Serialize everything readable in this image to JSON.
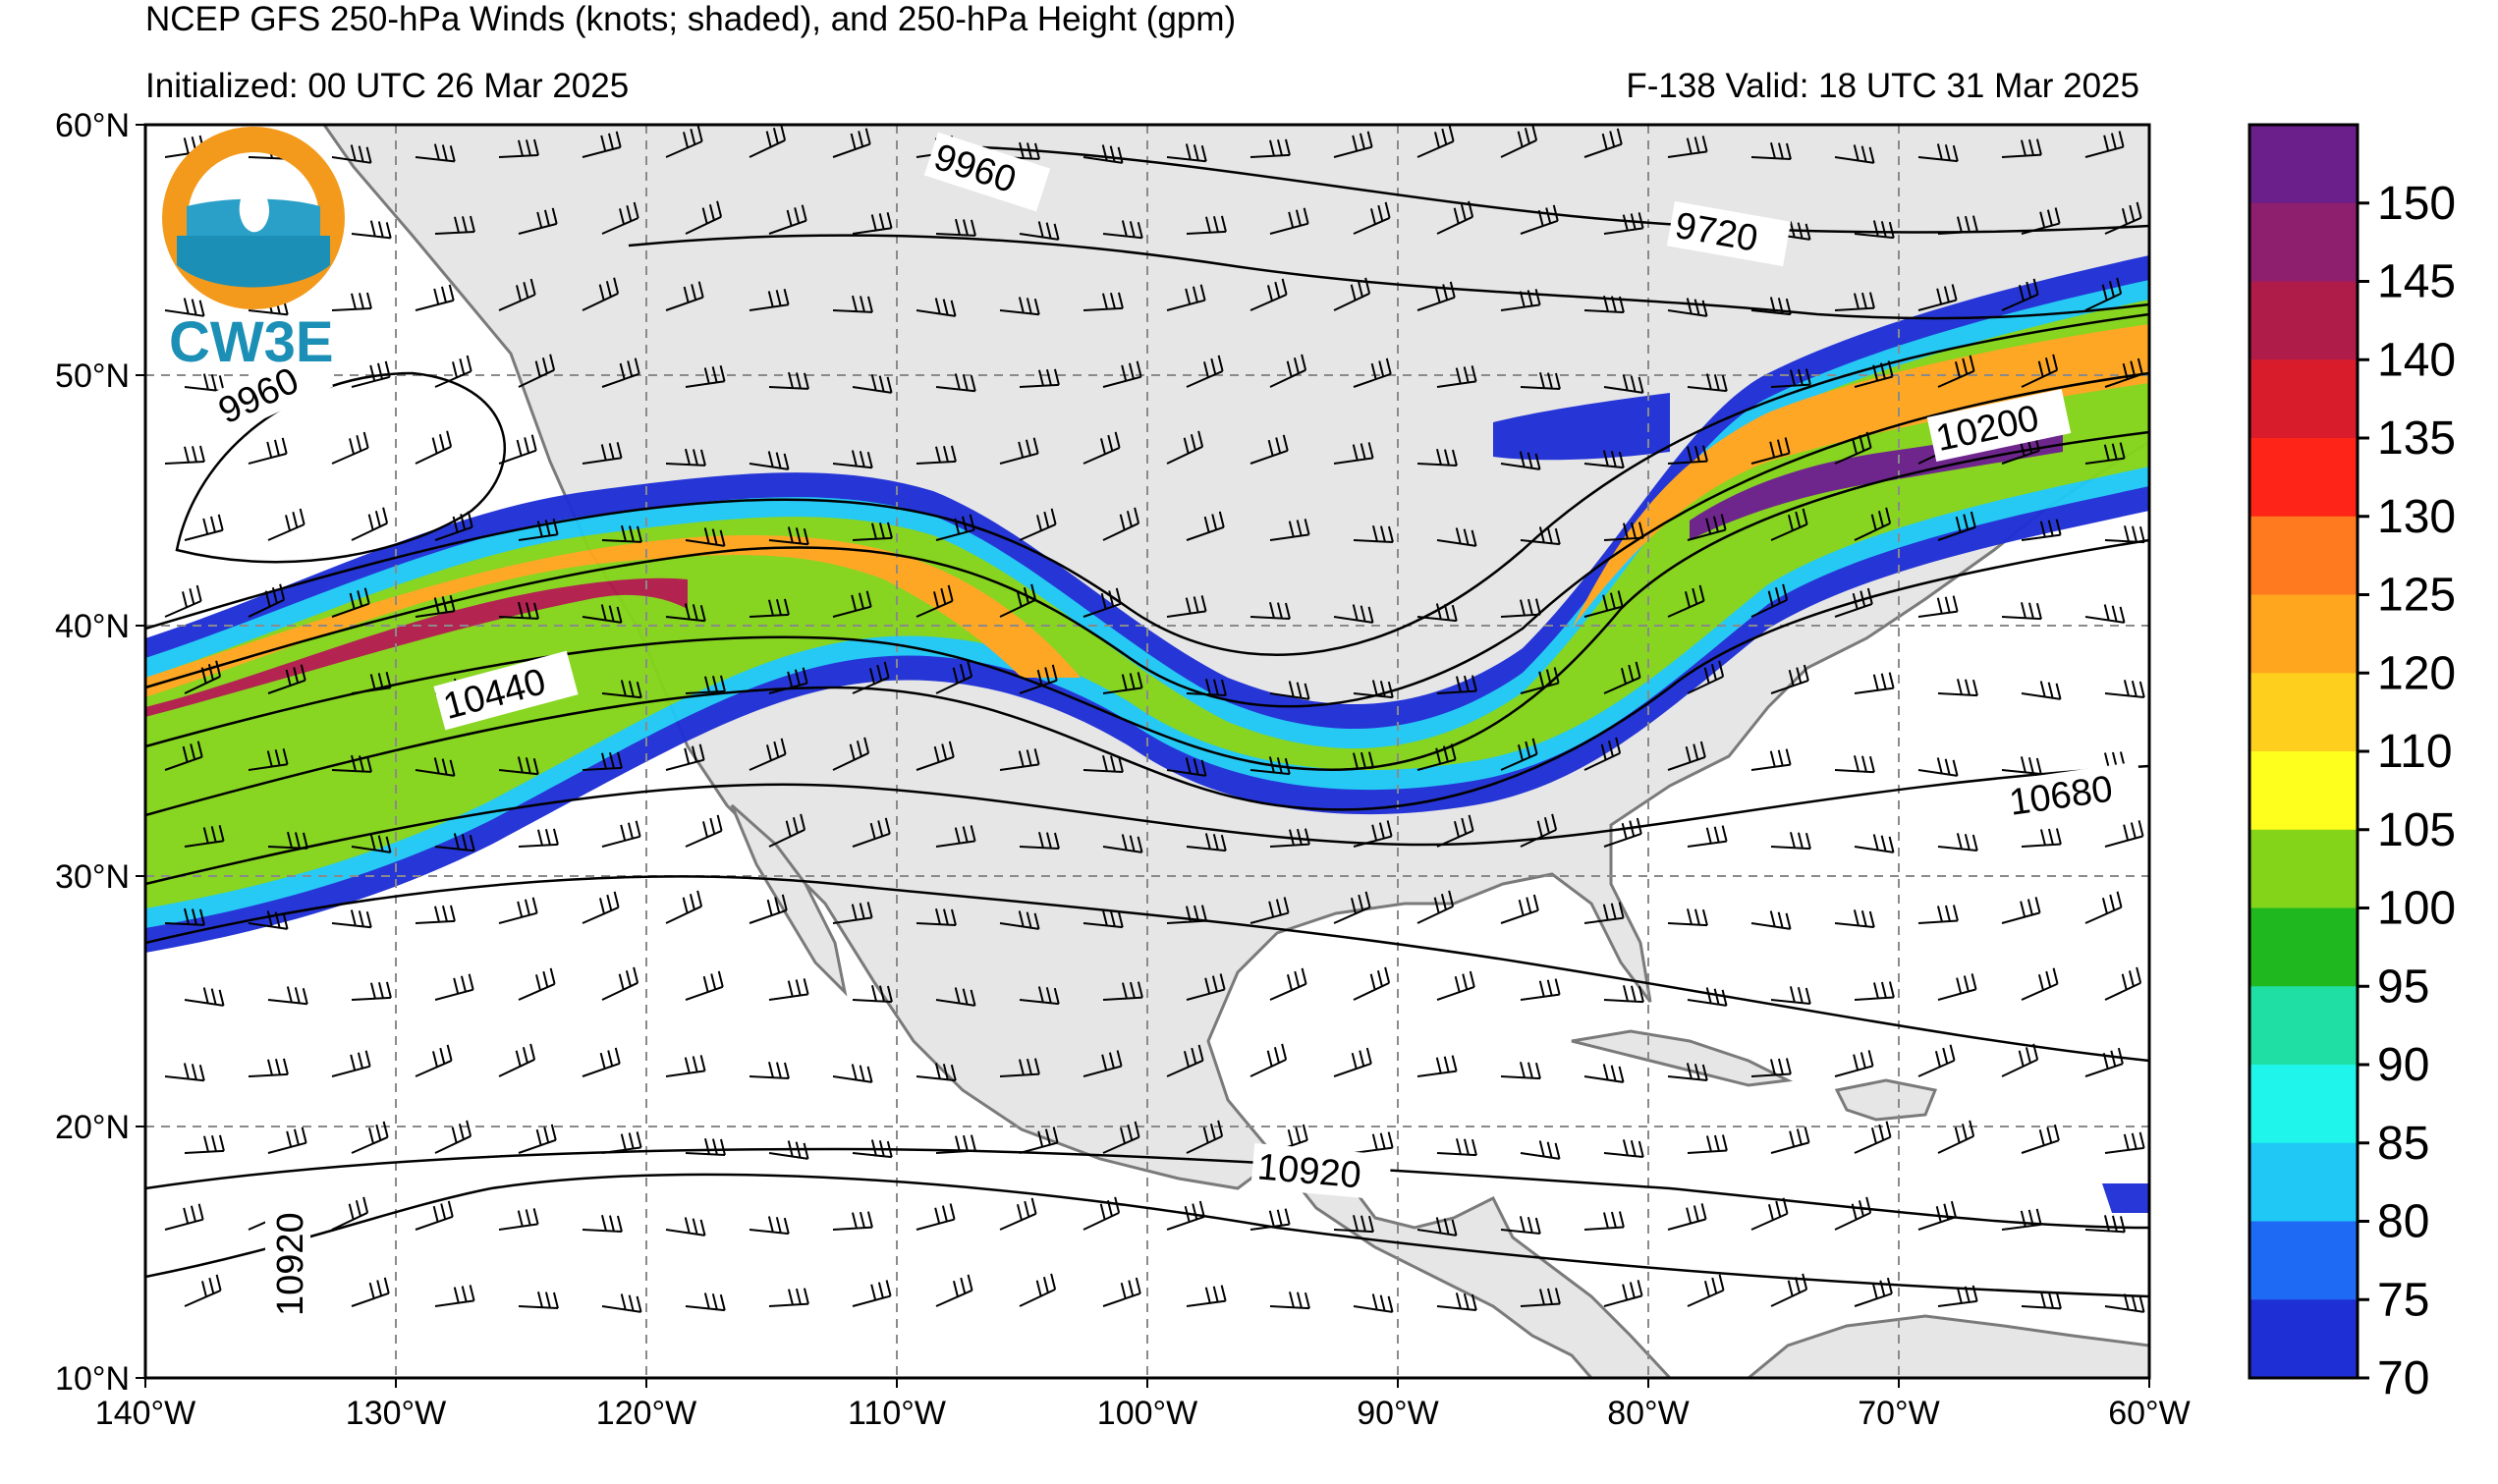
{
  "header": {
    "title": "NCEP GFS 250-hPa Winds (knots; shaded), and 250-hPa Height (gpm)",
    "initialized": "Initialized: 00 UTC 26 Mar 2025",
    "valid": "F-138  Valid: 18 UTC 31 Mar 2025"
  },
  "logo": {
    "text": "CW3E"
  },
  "axes": {
    "lat_labels": [
      "60°N",
      "50°N",
      "40°N",
      "30°N",
      "20°N",
      "10°N"
    ],
    "lon_labels": [
      "140°W",
      "130°W",
      "120°W",
      "110°W",
      "100°W",
      "90°W",
      "80°W",
      "70°W",
      "60°W"
    ]
  },
  "contour_labels": [
    "9960",
    "9720",
    "9960",
    "10200",
    "10440",
    "10680",
    "10920",
    "10920"
  ],
  "colorbar": {
    "labels": [
      "150",
      "145",
      "140",
      "135",
      "130",
      "125",
      "120",
      "110",
      "105",
      "100",
      "95",
      "90",
      "85",
      "80",
      "75",
      "70"
    ],
    "colors": [
      "#6a1f8a",
      "#8e1f6e",
      "#b01c4a",
      "#d81c2c",
      "#ff2418",
      "#ff7a1e",
      "#ffa51e",
      "#ffcf1e",
      "#ffff1e",
      "#84d41a",
      "#1fb81f",
      "#1fdfa5",
      "#1ff5ea",
      "#1fc8f5",
      "#1f6af5",
      "#1f2fd6"
    ]
  },
  "colors": {
    "land": "#e6e6e6",
    "ocean": "#ffffff",
    "coast": "#7a7a7a",
    "grid": "#8a8a8a"
  }
}
